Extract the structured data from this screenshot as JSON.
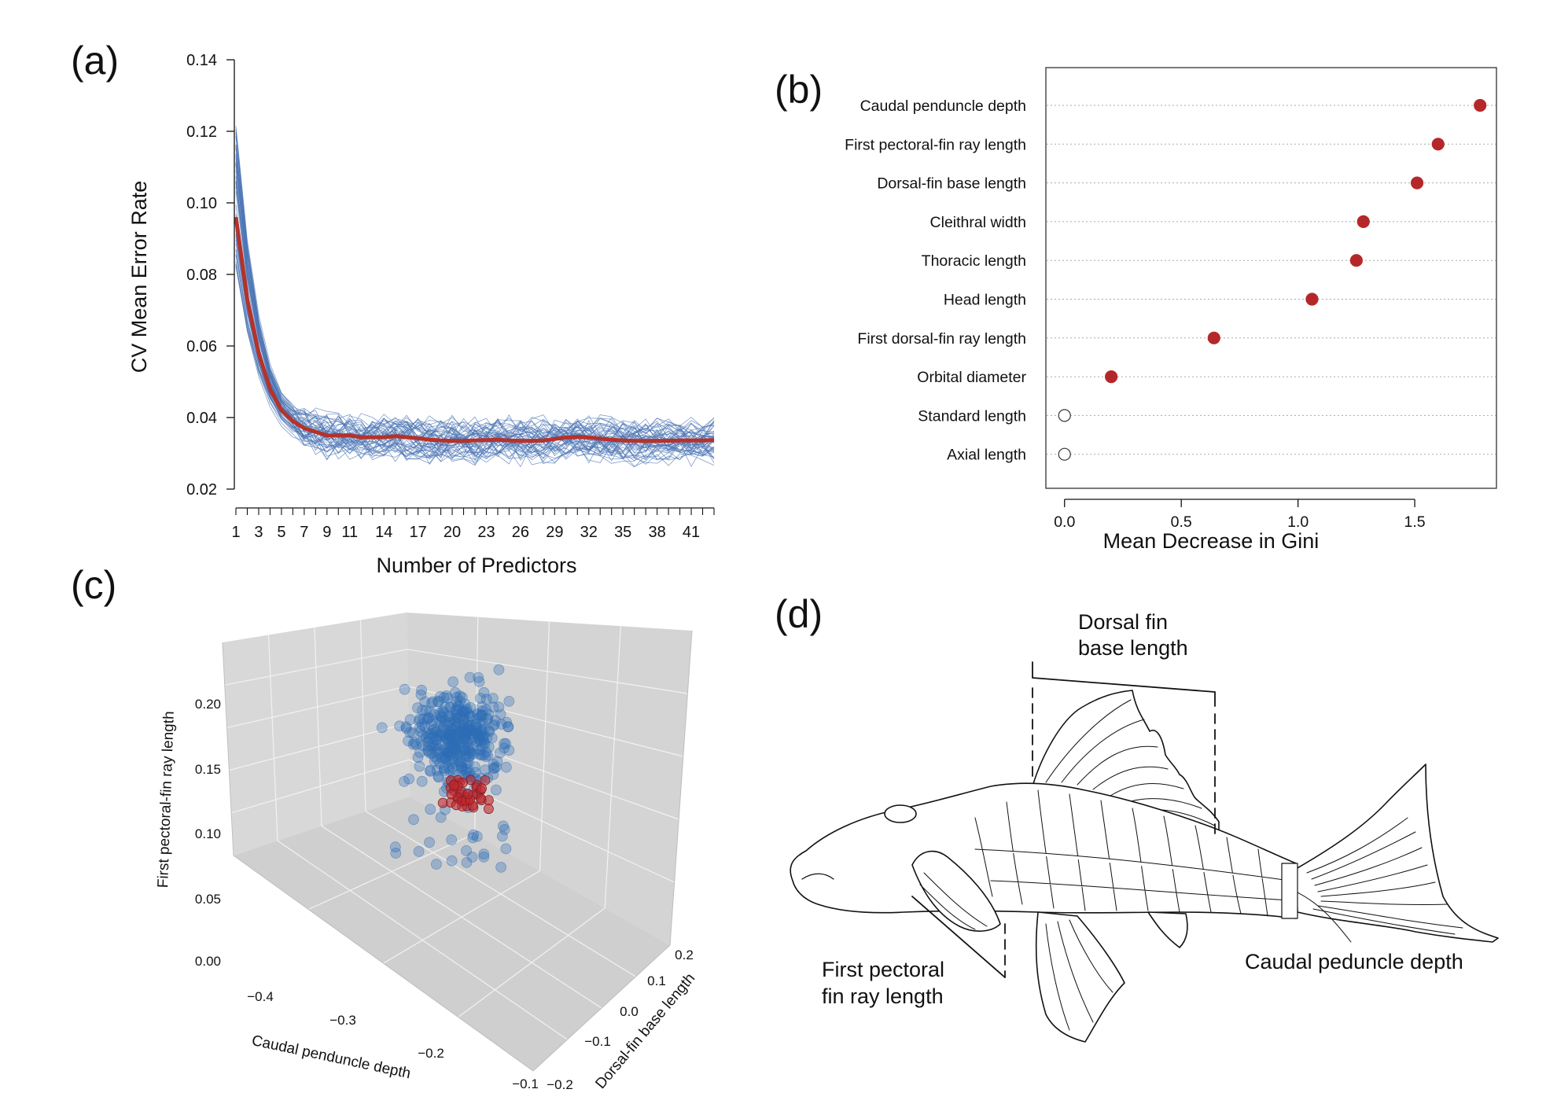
{
  "panels": {
    "a": "(a)",
    "b": "(b)",
    "c": "(c)",
    "d": "(d)"
  },
  "chart_data": [
    {
      "panel": "a",
      "type": "line",
      "xlabel": "Number of Predictors",
      "ylabel": "CV Mean Error Rate",
      "xlim": [
        1,
        43
      ],
      "ylim": [
        0.02,
        0.14
      ],
      "yticks": [
        "0.02",
        "0.04",
        "0.06",
        "0.08",
        "0.10",
        "0.12",
        "0.14"
      ],
      "xticks": [
        "1",
        "3",
        "5",
        "7",
        "9",
        "11",
        "14",
        "17",
        "20",
        "23",
        "26",
        "29",
        "32",
        "35",
        "38",
        "41"
      ],
      "x": [
        1,
        2,
        3,
        4,
        5,
        6,
        7,
        8,
        9,
        10,
        11,
        12,
        13,
        14,
        15,
        16,
        17,
        18,
        19,
        20,
        21,
        22,
        23,
        24,
        25,
        26,
        27,
        28,
        29,
        30,
        31,
        32,
        33,
        34,
        35,
        36,
        37,
        38,
        39,
        40,
        41,
        42,
        43
      ],
      "series": [
        {
          "values": [
            0.096,
            0.073,
            0.058,
            0.048,
            0.042,
            0.039,
            0.037,
            0.036,
            0.035,
            0.035,
            0.035,
            0.0345,
            0.0345,
            0.0345,
            0.0348,
            0.0345,
            0.0342,
            0.0338,
            0.0336,
            0.0335,
            0.0335,
            0.0336,
            0.0337,
            0.0338,
            0.0336,
            0.0335,
            0.0335,
            0.0336,
            0.034,
            0.0344,
            0.0346,
            0.0344,
            0.0341,
            0.0338,
            0.0336,
            0.0335,
            0.0335,
            0.0335,
            0.0335,
            0.0336,
            0.0336,
            0.0336,
            0.0337
          ]
        }
      ],
      "replicate_count": 50,
      "colors": {
        "mean": "#b5322a",
        "replicates": "#4a74b4"
      }
    },
    {
      "panel": "b",
      "type": "scatter",
      "xlabel": "Mean Decrease in Gini",
      "xlim": [
        -0.08,
        1.85
      ],
      "xticks": [
        "0.0",
        "0.5",
        "1.0",
        "1.5"
      ],
      "categories": [
        "Caudal penduncle depth",
        "First pectoral-fin ray length",
        "Dorsal-fin base length",
        "Cleithral width",
        "Thoracic length",
        "Head length",
        "First dorsal-fin ray length",
        "Orbital diameter",
        "Standard length",
        "Axial length"
      ],
      "values": [
        1.78,
        1.6,
        1.51,
        1.28,
        1.25,
        1.06,
        0.64,
        0.2,
        0.0,
        0.0
      ],
      "filled": [
        true,
        true,
        true,
        true,
        true,
        true,
        true,
        true,
        false,
        false
      ],
      "colors": {
        "filled": "#b5282a",
        "open": "#333333"
      }
    },
    {
      "panel": "c",
      "type": "scatter",
      "xlabel": "Caudal penduncle depth",
      "ylabel": "First pectoral-fin ray length",
      "zlabel": "Dorsal-fin base length",
      "xlim": [
        -0.45,
        -0.1
      ],
      "ylim": [
        -0.2,
        0.25
      ],
      "zlim": [
        0.0,
        0.24
      ],
      "xticks": [
        "−0.4",
        "−0.3",
        "−0.2",
        "−0.1"
      ],
      "yticks": [
        "−0.2",
        "−0.1",
        "0.0",
        "0.1",
        "0.2"
      ],
      "zticks": [
        "0.00",
        "0.05",
        "0.10",
        "0.15",
        "0.20"
      ],
      "series": [
        {
          "count": 400
        },
        {
          "count": 40
        }
      ],
      "colors": {
        "blue": "#2e6db5",
        "red": "#c0282e",
        "box": "#d7d7d7"
      }
    }
  ],
  "diagram_d": {
    "dorsal_label_1": "Dorsal fin",
    "dorsal_label_2": "base length",
    "pectoral_label_1": "First pectoral",
    "pectoral_label_2": "fin ray length",
    "caudal_label": "Caudal peduncle depth"
  }
}
